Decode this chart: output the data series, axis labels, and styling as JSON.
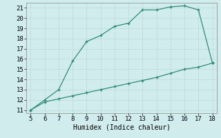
{
  "xlabel": "Humidex (Indice chaleur)",
  "x_upper": [
    5,
    6,
    7,
    8,
    9,
    10,
    11,
    12,
    13,
    14,
    15,
    16,
    17,
    18
  ],
  "y_upper": [
    11,
    12,
    13,
    15.8,
    17.7,
    18.3,
    19.2,
    19.5,
    20.8,
    20.8,
    21.1,
    21.2,
    20.8,
    15.6
  ],
  "x_lower": [
    5,
    6,
    7,
    8,
    9,
    10,
    11,
    12,
    13,
    14,
    15,
    16,
    17,
    18
  ],
  "y_lower": [
    11,
    11.8,
    12.1,
    12.4,
    12.7,
    13.0,
    13.3,
    13.6,
    13.9,
    14.2,
    14.6,
    15.0,
    15.2,
    15.6
  ],
  "line_color": "#2e8b77",
  "bg_color": "#d0ecec",
  "grid_color": "#bddada",
  "xlim": [
    4.7,
    18.3
  ],
  "ylim": [
    10.7,
    21.5
  ],
  "xticks": [
    5,
    6,
    7,
    8,
    9,
    10,
    11,
    12,
    13,
    14,
    15,
    16,
    17,
    18
  ],
  "yticks": [
    11,
    12,
    13,
    14,
    15,
    16,
    17,
    18,
    19,
    20,
    21
  ],
  "label_fontsize": 7,
  "tick_fontsize": 6.5
}
